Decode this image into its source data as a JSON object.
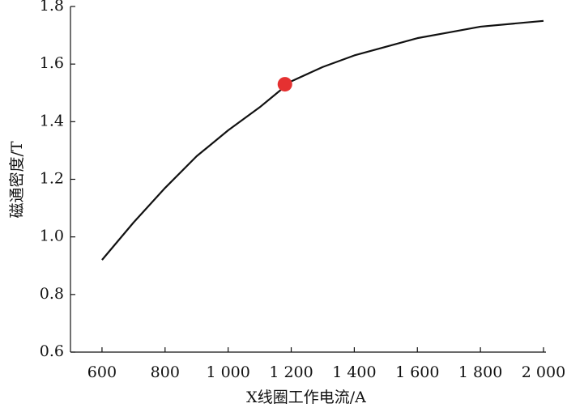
{
  "chart_data": {
    "type": "line",
    "x_label": "X线圈工作电流/A",
    "y_label": "磁通密度/T",
    "x": [
      600,
      700,
      800,
      900,
      1000,
      1100,
      1200,
      1300,
      1400,
      1500,
      1600,
      1700,
      1800,
      1900,
      2000
    ],
    "series": [
      {
        "color": "#111111",
        "values": [
          0.92,
          1.05,
          1.17,
          1.28,
          1.37,
          1.45,
          1.54,
          1.59,
          1.63,
          1.66,
          1.69,
          1.71,
          1.73,
          1.74,
          1.75
        ]
      }
    ],
    "highlight": {
      "x": 1180,
      "y": 1.53,
      "color": "#e53131"
    },
    "xlim": [
      500,
      2000
    ],
    "xticks": [
      600,
      800,
      {
        "value": 1000,
        "label": "1 000"
      },
      {
        "value": 1200,
        "label": "1 200"
      },
      {
        "value": 1400,
        "label": "1 400"
      },
      {
        "value": 1600,
        "label": "1 600"
      },
      {
        "value": 1800,
        "label": "1 800"
      },
      {
        "value": 2000,
        "label": "2 000"
      }
    ],
    "ylim": [
      0.6,
      1.8
    ],
    "yticks": [
      0.6,
      0.8,
      {
        "value": 1,
        "label": "1.0"
      },
      1.2,
      1.4,
      1.6,
      1.8
    ]
  }
}
